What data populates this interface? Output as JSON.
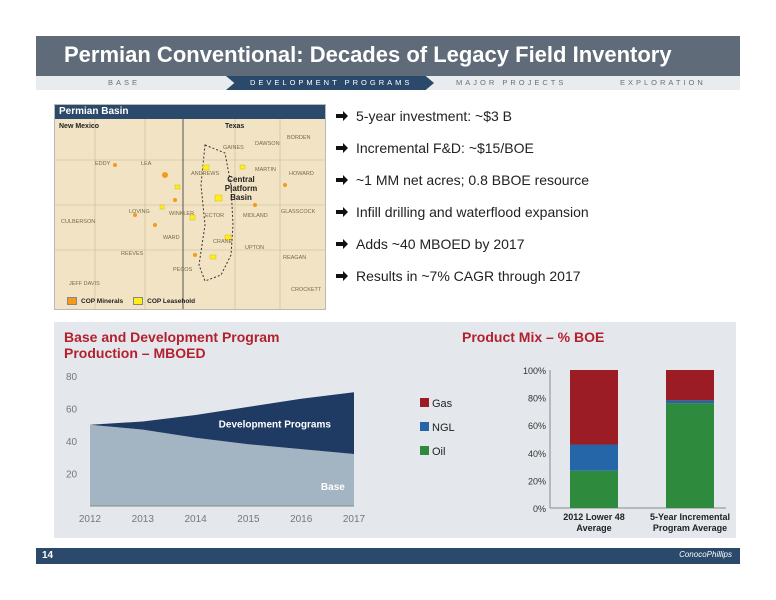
{
  "title": "Permian Conventional: Decades of Legacy Field Inventory",
  "nav": {
    "items": [
      "BASE",
      "DEVELOPMENT PROGRAMS",
      "MAJOR PROJECTS",
      "EXPLORATION"
    ],
    "active_index": 1
  },
  "map": {
    "title": "Permian Basin",
    "states": [
      "New Mexico",
      "Texas"
    ],
    "counties": [
      "BORDEN",
      "DAWSON",
      "GAINES",
      "EDDY",
      "LEA",
      "ANDREWS",
      "MARTIN",
      "HOWARD",
      "LOVING",
      "WINKLER",
      "ECTOR",
      "MIDLAND",
      "GLASSCOCK",
      "CULBERSON",
      "WARD",
      "CRANE",
      "UPTON",
      "REAGAN",
      "REEVES",
      "PECOS",
      "CROCKETT",
      "JEFF DAVIS"
    ],
    "center_label": "Central Platform Basin",
    "legend": [
      "COP Minerals",
      "COP Leasehold"
    ],
    "colors": {
      "minerals": "#f39a1f",
      "leasehold": "#ffee1a"
    }
  },
  "bullets": [
    "5-year investment: ~$3 B",
    "Incremental F&D: ~$15/BOE",
    "~1 MM net acres; 0.8 BBOE resource",
    "Infill drilling and waterflood expansion",
    "Adds ~40 MBOED by 2017",
    "Results in ~7% CAGR through 2017"
  ],
  "production_chart": {
    "title_line1": "Base and Development Program",
    "title_line2": "Production – MBOED"
  },
  "mix_chart": {
    "title": "Product Mix – % BOE"
  },
  "chart_data": [
    {
      "type": "area",
      "title": "Base and Development Program Production – MBOED",
      "x": [
        2012,
        2013,
        2014,
        2015,
        2016,
        2017
      ],
      "ylim": [
        0,
        80
      ],
      "yticks": [
        20,
        40,
        60,
        80
      ],
      "series": [
        {
          "name": "Base",
          "values": [
            50,
            47,
            42,
            38,
            35,
            32
          ],
          "color": "#a3b4c2"
        },
        {
          "name": "Development Programs",
          "values": [
            0,
            5,
            14,
            23,
            31,
            38
          ],
          "color": "#1f3a63"
        }
      ],
      "stacked": true
    },
    {
      "type": "bar",
      "title": "Product Mix – % BOE",
      "categories": [
        "2012 Lower 48 Average",
        "5-Year Incremental Program Average"
      ],
      "stacked": true,
      "ylim": [
        0,
        100
      ],
      "yticks": [
        "0%",
        "20%",
        "40%",
        "60%",
        "80%",
        "100%"
      ],
      "series": [
        {
          "name": "Oil",
          "values": [
            27,
            76
          ],
          "color": "#2e8b3e"
        },
        {
          "name": "NGL",
          "values": [
            19,
            2
          ],
          "color": "#2566a8"
        },
        {
          "name": "Gas",
          "values": [
            54,
            22
          ],
          "color": "#9b1c24"
        }
      ],
      "legend": [
        "Gas",
        "NGL",
        "Oil"
      ]
    }
  ],
  "footer": {
    "page_number": "14",
    "logo": "ConocoPhillips",
    "color": "#2b4a6b"
  }
}
